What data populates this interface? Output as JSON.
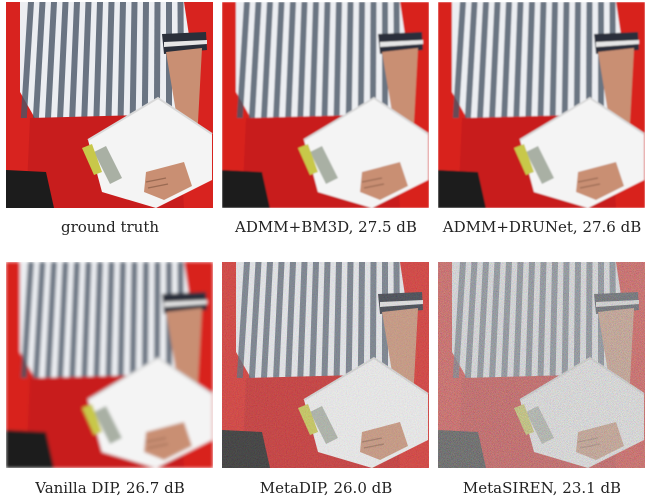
{
  "panels": [
    {
      "caption": "ground truth",
      "style": "clean"
    },
    {
      "caption": "ADMM+BM3D, 27.5 dB",
      "style": "smooth"
    },
    {
      "caption": "ADMM+DRUNet, 27.6 dB",
      "style": "smooth"
    },
    {
      "caption": "Vanilla DIP, 26.7 dB",
      "style": "blurry"
    },
    {
      "caption": "MetaDIP, 26.0 dB",
      "style": "speckled"
    },
    {
      "caption": "MetaSIREN, 23.1 dB",
      "style": "noisy"
    }
  ],
  "colors": {
    "background_red": "#d8231f",
    "shirt_white": "#eceef2",
    "shirt_stripe": "#4a5565",
    "skin": "#c98f73",
    "paper": "#f4f4f4",
    "shorts_red": "#c81d1d",
    "shadow": "#1c1c1c"
  }
}
